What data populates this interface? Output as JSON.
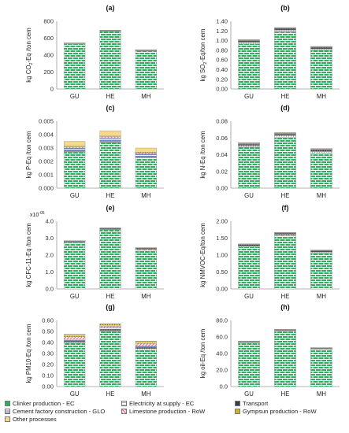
{
  "chart_data": [
    {
      "type": "bar",
      "stacked": true,
      "panel": "(a)",
      "categories": [
        "GU",
        "HE",
        "MH"
      ],
      "ylabel": "kg CO2-Eq /ton cem",
      "ylabel_main": "kg CO",
      "ylabel_sub": "2",
      "ylabel_rest": "-Eq /ton cem",
      "ylim": [
        0,
        800
      ],
      "yticks": [
        "0",
        "200",
        "400",
        "600",
        "800"
      ],
      "series": [
        {
          "name": "Clinker production - EC",
          "values": [
            530,
            680,
            450
          ]
        },
        {
          "name": "Electricity at supply - EC",
          "values": [
            6,
            7,
            5
          ]
        },
        {
          "name": "Transport",
          "values": [
            3,
            3,
            3
          ]
        },
        {
          "name": "Cement factory construction - GLO",
          "values": [
            1,
            1,
            1
          ]
        },
        {
          "name": "Limestone production - RoW",
          "values": [
            2,
            2,
            2
          ]
        },
        {
          "name": "Gympsun production - RoW",
          "values": [
            1,
            1,
            1
          ]
        },
        {
          "name": "Other processes",
          "values": [
            2,
            2,
            2
          ]
        }
      ]
    },
    {
      "type": "bar",
      "stacked": true,
      "panel": "(b)",
      "categories": [
        "GU",
        "HE",
        "MH"
      ],
      "ylabel": "kg SO2-Eq/ton cem",
      "ylabel_main": "kg SO",
      "ylabel_sub": "2",
      "ylabel_rest": "-Eq/ton cem",
      "ylim": [
        0,
        1.4
      ],
      "yticks": [
        "0.00",
        "0.20",
        "0.40",
        "0.60",
        "0.80",
        "1.00",
        "1.20",
        "1.40"
      ],
      "series": [
        {
          "name": "Clinker production - EC",
          "values": [
            0.93,
            1.18,
            0.8
          ]
        },
        {
          "name": "Electricity at supply - EC",
          "values": [
            0.04,
            0.04,
            0.03
          ]
        },
        {
          "name": "Transport",
          "values": [
            0.03,
            0.03,
            0.03
          ]
        },
        {
          "name": "Cement factory construction - GLO",
          "values": [
            0.005,
            0.005,
            0.005
          ]
        },
        {
          "name": "Limestone production - RoW",
          "values": [
            0.005,
            0.005,
            0.005
          ]
        },
        {
          "name": "Gympsun production - RoW",
          "values": [
            0.005,
            0.005,
            0.005
          ]
        },
        {
          "name": "Other processes",
          "values": [
            0.005,
            0.005,
            0.005
          ]
        }
      ]
    },
    {
      "type": "bar",
      "stacked": true,
      "panel": "(c)",
      "categories": [
        "GU",
        "HE",
        "MH"
      ],
      "ylabel": "kg P-Eq /ton cem",
      "ylim": [
        0,
        0.005
      ],
      "yticks": [
        "0.000",
        "0.001",
        "0.002",
        "0.003",
        "0.004",
        "0.005"
      ],
      "series": [
        {
          "name": "Clinker production - EC",
          "values": [
            0.0027,
            0.0034,
            0.00225
          ]
        },
        {
          "name": "Electricity at supply - EC",
          "values": [
            5e-05,
            5e-05,
            5e-05
          ]
        },
        {
          "name": "Transport",
          "values": [
            5e-05,
            5e-05,
            5e-05
          ]
        },
        {
          "name": "Cement factory construction - GLO",
          "values": [
            0.0002,
            0.00025,
            0.0002
          ]
        },
        {
          "name": "Limestone production - RoW",
          "values": [
            8e-05,
            8e-05,
            8e-05
          ]
        },
        {
          "name": "Gympsun production - RoW",
          "values": [
            6e-05,
            6e-05,
            6e-05
          ]
        },
        {
          "name": "Other processes",
          "values": [
            0.00036,
            0.0004,
            0.00031
          ]
        }
      ]
    },
    {
      "type": "bar",
      "stacked": true,
      "panel": "(d)",
      "categories": [
        "GU",
        "HE",
        "MH"
      ],
      "ylabel": "kg N-Eq /ton cem",
      "ylim": [
        0,
        0.08
      ],
      "yticks": [
        "0.00",
        "0.02",
        "0.04",
        "0.06",
        "0.08"
      ],
      "series": [
        {
          "name": "Clinker production - EC",
          "values": [
            0.049,
            0.061,
            0.042
          ]
        },
        {
          "name": "Electricity at supply - EC",
          "values": [
            0.002,
            0.002,
            0.002
          ]
        },
        {
          "name": "Transport",
          "values": [
            0.0015,
            0.0015,
            0.0015
          ]
        },
        {
          "name": "Cement factory construction - GLO",
          "values": [
            0.0006,
            0.0006,
            0.0006
          ]
        },
        {
          "name": "Limestone production - RoW",
          "values": [
            0.0006,
            0.0006,
            0.0006
          ]
        },
        {
          "name": "Gympsun production - RoW",
          "values": [
            0.0003,
            0.0003,
            0.0003
          ]
        },
        {
          "name": "Other processes",
          "values": [
            0.0005,
            0.0005,
            0.0005
          ]
        }
      ]
    },
    {
      "type": "bar",
      "stacked": true,
      "panel": "(e)",
      "categories": [
        "GU",
        "HE",
        "MH"
      ],
      "ylabel": "kg CFC-11-Eq /ton cem",
      "scale_label": "x10-05",
      "scale_main": "x10",
      "scale_sup": "-05",
      "ylim": [
        0,
        4
      ],
      "yticks": [
        "0.0",
        "1.0",
        "2.0",
        "3.0",
        "4.0"
      ],
      "series": [
        {
          "name": "Clinker production - EC",
          "values": [
            2.74,
            3.5,
            2.33
          ]
        },
        {
          "name": "Electricity at supply - EC",
          "values": [
            0.03,
            0.03,
            0.03
          ]
        },
        {
          "name": "Transport",
          "values": [
            0.05,
            0.05,
            0.05
          ]
        },
        {
          "name": "Cement factory construction - GLO",
          "values": [
            0.01,
            0.01,
            0.01
          ]
        },
        {
          "name": "Limestone production - RoW",
          "values": [
            0.01,
            0.01,
            0.01
          ]
        },
        {
          "name": "Gympsun production - RoW",
          "values": [
            0.005,
            0.005,
            0.005
          ]
        },
        {
          "name": "Other processes",
          "values": [
            0.005,
            0.005,
            0.005
          ]
        }
      ]
    },
    {
      "type": "bar",
      "stacked": true,
      "panel": "(f)",
      "categories": [
        "GU",
        "HE",
        "MH"
      ],
      "ylabel": "kg NMVOC-Eq/ton cem",
      "ylim": [
        0,
        2.0
      ],
      "yticks": [
        "0.00",
        "0.50",
        "1.00",
        "1.50",
        "2.00"
      ],
      "series": [
        {
          "name": "Clinker production - EC",
          "values": [
            1.24,
            1.58,
            1.06
          ]
        },
        {
          "name": "Electricity at supply - EC",
          "values": [
            0.03,
            0.03,
            0.03
          ]
        },
        {
          "name": "Transport",
          "values": [
            0.04,
            0.04,
            0.04
          ]
        },
        {
          "name": "Cement factory construction - GLO",
          "values": [
            0.005,
            0.005,
            0.005
          ]
        },
        {
          "name": "Limestone production - RoW",
          "values": [
            0.005,
            0.005,
            0.005
          ]
        },
        {
          "name": "Gympsun production - RoW",
          "values": [
            0.005,
            0.005,
            0.005
          ]
        },
        {
          "name": "Other processes",
          "values": [
            0.005,
            0.005,
            0.005
          ]
        }
      ]
    },
    {
      "type": "bar",
      "stacked": true,
      "panel": "(g)",
      "categories": [
        "GU",
        "HE",
        "MH"
      ],
      "ylabel": "kg PM10-Eq /ton cem",
      "ylim": [
        0,
        0.6
      ],
      "yticks": [
        "0.00",
        "0.10",
        "0.20",
        "0.30",
        "0.40",
        "0.50",
        "0.60"
      ],
      "series": [
        {
          "name": "Clinker production - EC",
          "values": [
            0.395,
            0.5,
            0.335
          ]
        },
        {
          "name": "Electricity at supply - EC",
          "values": [
            0.01,
            0.01,
            0.01
          ]
        },
        {
          "name": "Transport",
          "values": [
            0.01,
            0.01,
            0.01
          ]
        },
        {
          "name": "Cement factory construction - GLO",
          "values": [
            0.012,
            0.012,
            0.012
          ]
        },
        {
          "name": "Limestone production - RoW",
          "values": [
            0.025,
            0.015,
            0.025
          ]
        },
        {
          "name": "Gympsun production - RoW",
          "values": [
            0.02,
            0.02,
            0.018
          ]
        },
        {
          "name": "Other processes",
          "values": [
            0.003,
            0.003,
            0.003
          ]
        }
      ]
    },
    {
      "type": "bar",
      "stacked": true,
      "panel": "(h)",
      "categories": [
        "GU",
        "HE",
        "MH"
      ],
      "ylabel": "kg oil-Eq /ton cem",
      "ylim": [
        0,
        80
      ],
      "yticks": [
        "0.0",
        "20.0",
        "40.0",
        "60.0",
        "80.0"
      ],
      "series": [
        {
          "name": "Clinker production - EC",
          "values": [
            53.2,
            67.5,
            45.3
          ]
        },
        {
          "name": "Electricity at supply - EC",
          "values": [
            0.5,
            0.5,
            0.5
          ]
        },
        {
          "name": "Transport",
          "values": [
            0.8,
            0.8,
            0.8
          ]
        },
        {
          "name": "Cement factory construction - GLO",
          "values": [
            0.2,
            0.2,
            0.2
          ]
        },
        {
          "name": "Limestone production - RoW",
          "values": [
            0.1,
            0.1,
            0.1
          ]
        },
        {
          "name": "Gympsun production - RoW",
          "values": [
            0.1,
            0.1,
            0.1
          ]
        },
        {
          "name": "Other processes",
          "values": [
            0.1,
            0.1,
            0.1
          ]
        }
      ]
    }
  ],
  "legend": {
    "placement": "bottom",
    "items": [
      {
        "label": "Clinker production - EC",
        "pattern": "brick-green"
      },
      {
        "label": "Electricity at supply - EC",
        "pattern": "grid-gray"
      },
      {
        "label": "Transport",
        "pattern": "check-dark"
      },
      {
        "label": "Cement factory construction - GLO",
        "pattern": "stripe-blue"
      },
      {
        "label": "Limestone production - RoW",
        "pattern": "hatch-red"
      },
      {
        "label": "Gympsun production - RoW",
        "pattern": "dots-gold"
      },
      {
        "label": "Other processes",
        "pattern": "fill-yellow"
      }
    ]
  },
  "colors": {
    "clinker_fill": "#2fae5f",
    "clinker_line": "#ffffff",
    "electricity": "#c9c9c9",
    "transport": "#4d4d55",
    "construction": "#5b6fb0",
    "limestone": "#d9677a",
    "gypsum": "#bfa21d",
    "other": "#f7d98a",
    "axis": "#9a9a9a"
  }
}
